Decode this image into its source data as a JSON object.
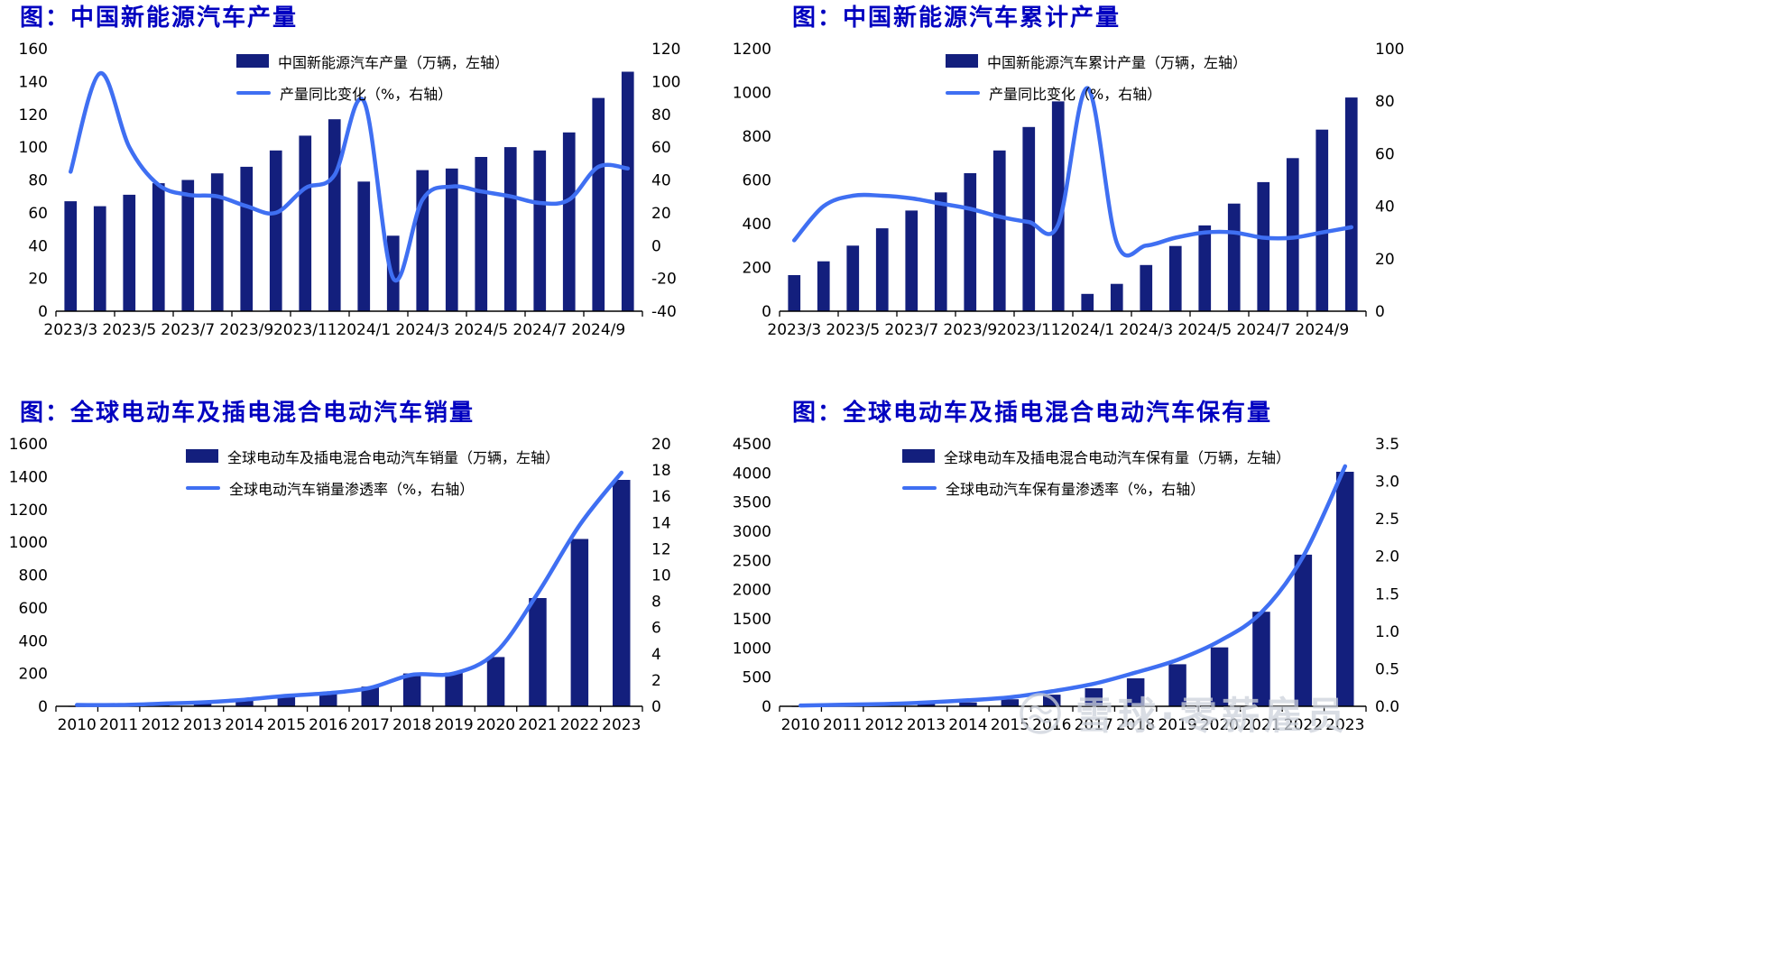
{
  "colors": {
    "bar": "#131f7d",
    "line": "#3f6ff2",
    "title": "#0000c0",
    "axis_text": "#000000",
    "watermark": "#cdd2db"
  },
  "watermark": {
    "text": "雪球·零薪雇员"
  },
  "chart_data": [
    {
      "type": "bar",
      "title": "图：中国新能源汽车产量",
      "legend": {
        "bar": "中国新能源汽车产量（万辆，左轴）",
        "line": "产量同比变化（%，右轴）"
      },
      "categories": [
        "2023/3",
        "2023/4",
        "2023/5",
        "2023/6",
        "2023/7",
        "2023/8",
        "2023/9",
        "2023/10",
        "2023/11",
        "2023/12",
        "2024/1",
        "2024/2",
        "2024/3",
        "2024/4",
        "2024/5",
        "2024/6",
        "2024/7",
        "2024/8",
        "2024/9",
        "2024/10"
      ],
      "bars": [
        67,
        64,
        71,
        78,
        80,
        84,
        88,
        98,
        107,
        117,
        79,
        46,
        86,
        87,
        94,
        100,
        98,
        109,
        130,
        146
      ],
      "line": [
        45,
        105,
        60,
        37,
        31,
        30,
        24,
        20,
        35,
        43,
        88,
        -20,
        28,
        36,
        33,
        30,
        26,
        28,
        48,
        47
      ],
      "left_axis": {
        "min": 0,
        "max": 160,
        "step": 20,
        "decimals": 0
      },
      "right_axis": {
        "min": -40,
        "max": 120,
        "step": 20,
        "decimals": 0
      },
      "x_tick_every": 2
    },
    {
      "type": "bar",
      "title": "图：中国新能源汽车累计产量",
      "legend": {
        "bar": "中国新能源汽车累计产量（万辆，左轴）",
        "line": "产量同比变化（%，右轴）"
      },
      "categories": [
        "2023/3",
        "2023/4",
        "2023/5",
        "2023/6",
        "2023/7",
        "2023/8",
        "2023/9",
        "2023/10",
        "2023/11",
        "2023/12",
        "2024/1",
        "2024/2",
        "2024/3",
        "2024/4",
        "2024/5",
        "2024/6",
        "2024/7",
        "2024/8",
        "2024/9",
        "2024/10"
      ],
      "bars": [
        165,
        228,
        300,
        379,
        460,
        543,
        631,
        735,
        842,
        959,
        79,
        125,
        211,
        298,
        392,
        492,
        590,
        700,
        830,
        977
      ],
      "line": [
        27,
        40,
        44,
        44,
        43,
        41,
        39,
        36,
        34,
        33,
        85,
        26,
        25,
        28,
        30,
        30,
        28,
        28,
        30,
        32
      ],
      "left_axis": {
        "min": 0,
        "max": 1200,
        "step": 200,
        "decimals": 0
      },
      "right_axis": {
        "min": 0,
        "max": 100,
        "step": 20,
        "decimals": 0
      },
      "x_tick_every": 2
    },
    {
      "type": "bar",
      "title": "图：全球电动车及插电混合电动汽车销量",
      "legend": {
        "bar": "全球电动车及插电混合电动汽车销量（万辆，左轴）",
        "line": "全球电动汽车销量渗透率（%，右轴）"
      },
      "categories": [
        "2010",
        "2011",
        "2012",
        "2013",
        "2014",
        "2015",
        "2016",
        "2017",
        "2018",
        "2019",
        "2020",
        "2021",
        "2022",
        "2023"
      ],
      "bars": [
        1,
        7,
        13,
        22,
        35,
        55,
        75,
        120,
        200,
        205,
        300,
        660,
        1020,
        1380
      ],
      "line": [
        0.1,
        0.1,
        0.2,
        0.3,
        0.5,
        0.8,
        1.0,
        1.4,
        2.4,
        2.5,
        4.1,
        8.6,
        13.8,
        17.8
      ],
      "left_axis": {
        "min": 0,
        "max": 1600,
        "step": 200,
        "decimals": 0
      },
      "right_axis": {
        "min": 0,
        "max": 20,
        "step": 2,
        "decimals": 0
      },
      "x_tick_every": 1
    },
    {
      "type": "bar",
      "title": "图：全球电动车及插电混合电动汽车保有量",
      "legend": {
        "bar": "全球电动车及插电混合电动汽车保有量（万辆，左轴）",
        "line": "全球电动汽车保有量渗透率（%，右轴）"
      },
      "categories": [
        "2010",
        "2011",
        "2012",
        "2013",
        "2014",
        "2015",
        "2016",
        "2017",
        "2018",
        "2019",
        "2020",
        "2021",
        "2022",
        "2023"
      ],
      "bars": [
        2,
        8,
        18,
        38,
        66,
        120,
        200,
        310,
        480,
        720,
        1010,
        1620,
        2600,
        4020
      ],
      "line": [
        0.01,
        0.02,
        0.03,
        0.05,
        0.08,
        0.12,
        0.2,
        0.3,
        0.45,
        0.62,
        0.87,
        1.25,
        2.0,
        3.2
      ],
      "left_axis": {
        "min": 0,
        "max": 4500,
        "step": 500,
        "decimals": 0
      },
      "right_axis": {
        "min": 0,
        "max": 3.5,
        "step": 0.5,
        "decimals": 1
      },
      "x_tick_every": 1
    }
  ]
}
